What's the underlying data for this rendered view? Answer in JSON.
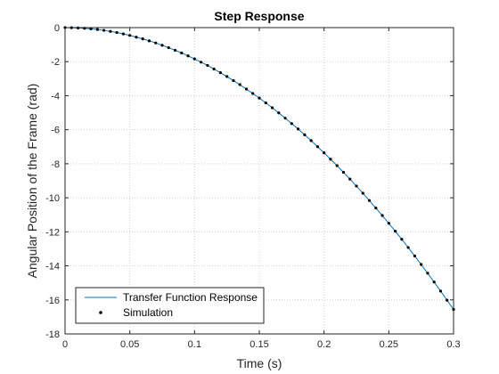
{
  "chart_data": {
    "type": "line",
    "title": "Step Response",
    "xlabel": "Time (s)",
    "ylabel": "Angular Position of the Frame (rad)",
    "xlim": [
      0,
      0.3
    ],
    "ylim": [
      -18,
      0
    ],
    "xticks": [
      0,
      0.05,
      0.1,
      0.15,
      0.2,
      0.25,
      0.3
    ],
    "xtick_labels": [
      "0",
      "0.05",
      "0.1",
      "0.15",
      "0.2",
      "0.25",
      "0.3"
    ],
    "yticks": [
      0,
      -2,
      -4,
      -6,
      -8,
      -10,
      -12,
      -14,
      -16,
      -18
    ],
    "ytick_labels": [
      "0",
      "-2",
      "-4",
      "-6",
      "-8",
      "-10",
      "-12",
      "-14",
      "-16",
      "-18"
    ],
    "grid": true,
    "legend_position": "bottom-left",
    "series": [
      {
        "name": "Transfer Function Response",
        "style": "line",
        "color": "#0072BD",
        "x": [
          0,
          0.01,
          0.02,
          0.03,
          0.04,
          0.05,
          0.06,
          0.07,
          0.08,
          0.09,
          0.1,
          0.11,
          0.12,
          0.13,
          0.14,
          0.15,
          0.16,
          0.17,
          0.18,
          0.19,
          0.2,
          0.21,
          0.22,
          0.23,
          0.24,
          0.25,
          0.26,
          0.27,
          0.28,
          0.29,
          0.3
        ],
        "y": [
          0,
          -0.02,
          -0.07,
          -0.16,
          -0.29,
          -0.46,
          -0.66,
          -0.9,
          -1.18,
          -1.49,
          -1.84,
          -2.22,
          -2.65,
          -3.11,
          -3.61,
          -4.14,
          -4.71,
          -5.32,
          -5.96,
          -6.64,
          -7.36,
          -8.11,
          -8.9,
          -9.73,
          -10.6,
          -11.5,
          -12.44,
          -13.42,
          -14.43,
          -15.48,
          -16.56
        ]
      },
      {
        "name": "Simulation",
        "style": "markers",
        "color": "#000000",
        "x": [
          0,
          0.005,
          0.01,
          0.015,
          0.02,
          0.025,
          0.03,
          0.035,
          0.04,
          0.045,
          0.05,
          0.055,
          0.06,
          0.065,
          0.07,
          0.075,
          0.08,
          0.085,
          0.09,
          0.095,
          0.1,
          0.105,
          0.11,
          0.115,
          0.12,
          0.125,
          0.13,
          0.135,
          0.14,
          0.145,
          0.15,
          0.155,
          0.16,
          0.165,
          0.17,
          0.175,
          0.18,
          0.185,
          0.19,
          0.195,
          0.2,
          0.205,
          0.21,
          0.215,
          0.22,
          0.225,
          0.23,
          0.235,
          0.24,
          0.245,
          0.25,
          0.255,
          0.26,
          0.265,
          0.27,
          0.275,
          0.28,
          0.285,
          0.29,
          0.295,
          0.3
        ],
        "y": [
          0,
          -0.005,
          -0.02,
          -0.04,
          -0.07,
          -0.11,
          -0.16,
          -0.22,
          -0.29,
          -0.37,
          -0.46,
          -0.56,
          -0.66,
          -0.78,
          -0.9,
          -1.04,
          -1.18,
          -1.33,
          -1.49,
          -1.66,
          -1.84,
          -2.03,
          -2.22,
          -2.43,
          -2.65,
          -2.87,
          -3.11,
          -3.35,
          -3.61,
          -3.87,
          -4.14,
          -4.42,
          -4.71,
          -5.01,
          -5.32,
          -5.64,
          -5.96,
          -6.3,
          -6.64,
          -7.0,
          -7.36,
          -7.73,
          -8.11,
          -8.5,
          -8.9,
          -9.31,
          -9.73,
          -10.16,
          -10.6,
          -11.04,
          -11.5,
          -11.96,
          -12.44,
          -12.92,
          -13.42,
          -13.92,
          -14.43,
          -14.95,
          -15.48,
          -16.02,
          -16.56
        ]
      }
    ]
  }
}
